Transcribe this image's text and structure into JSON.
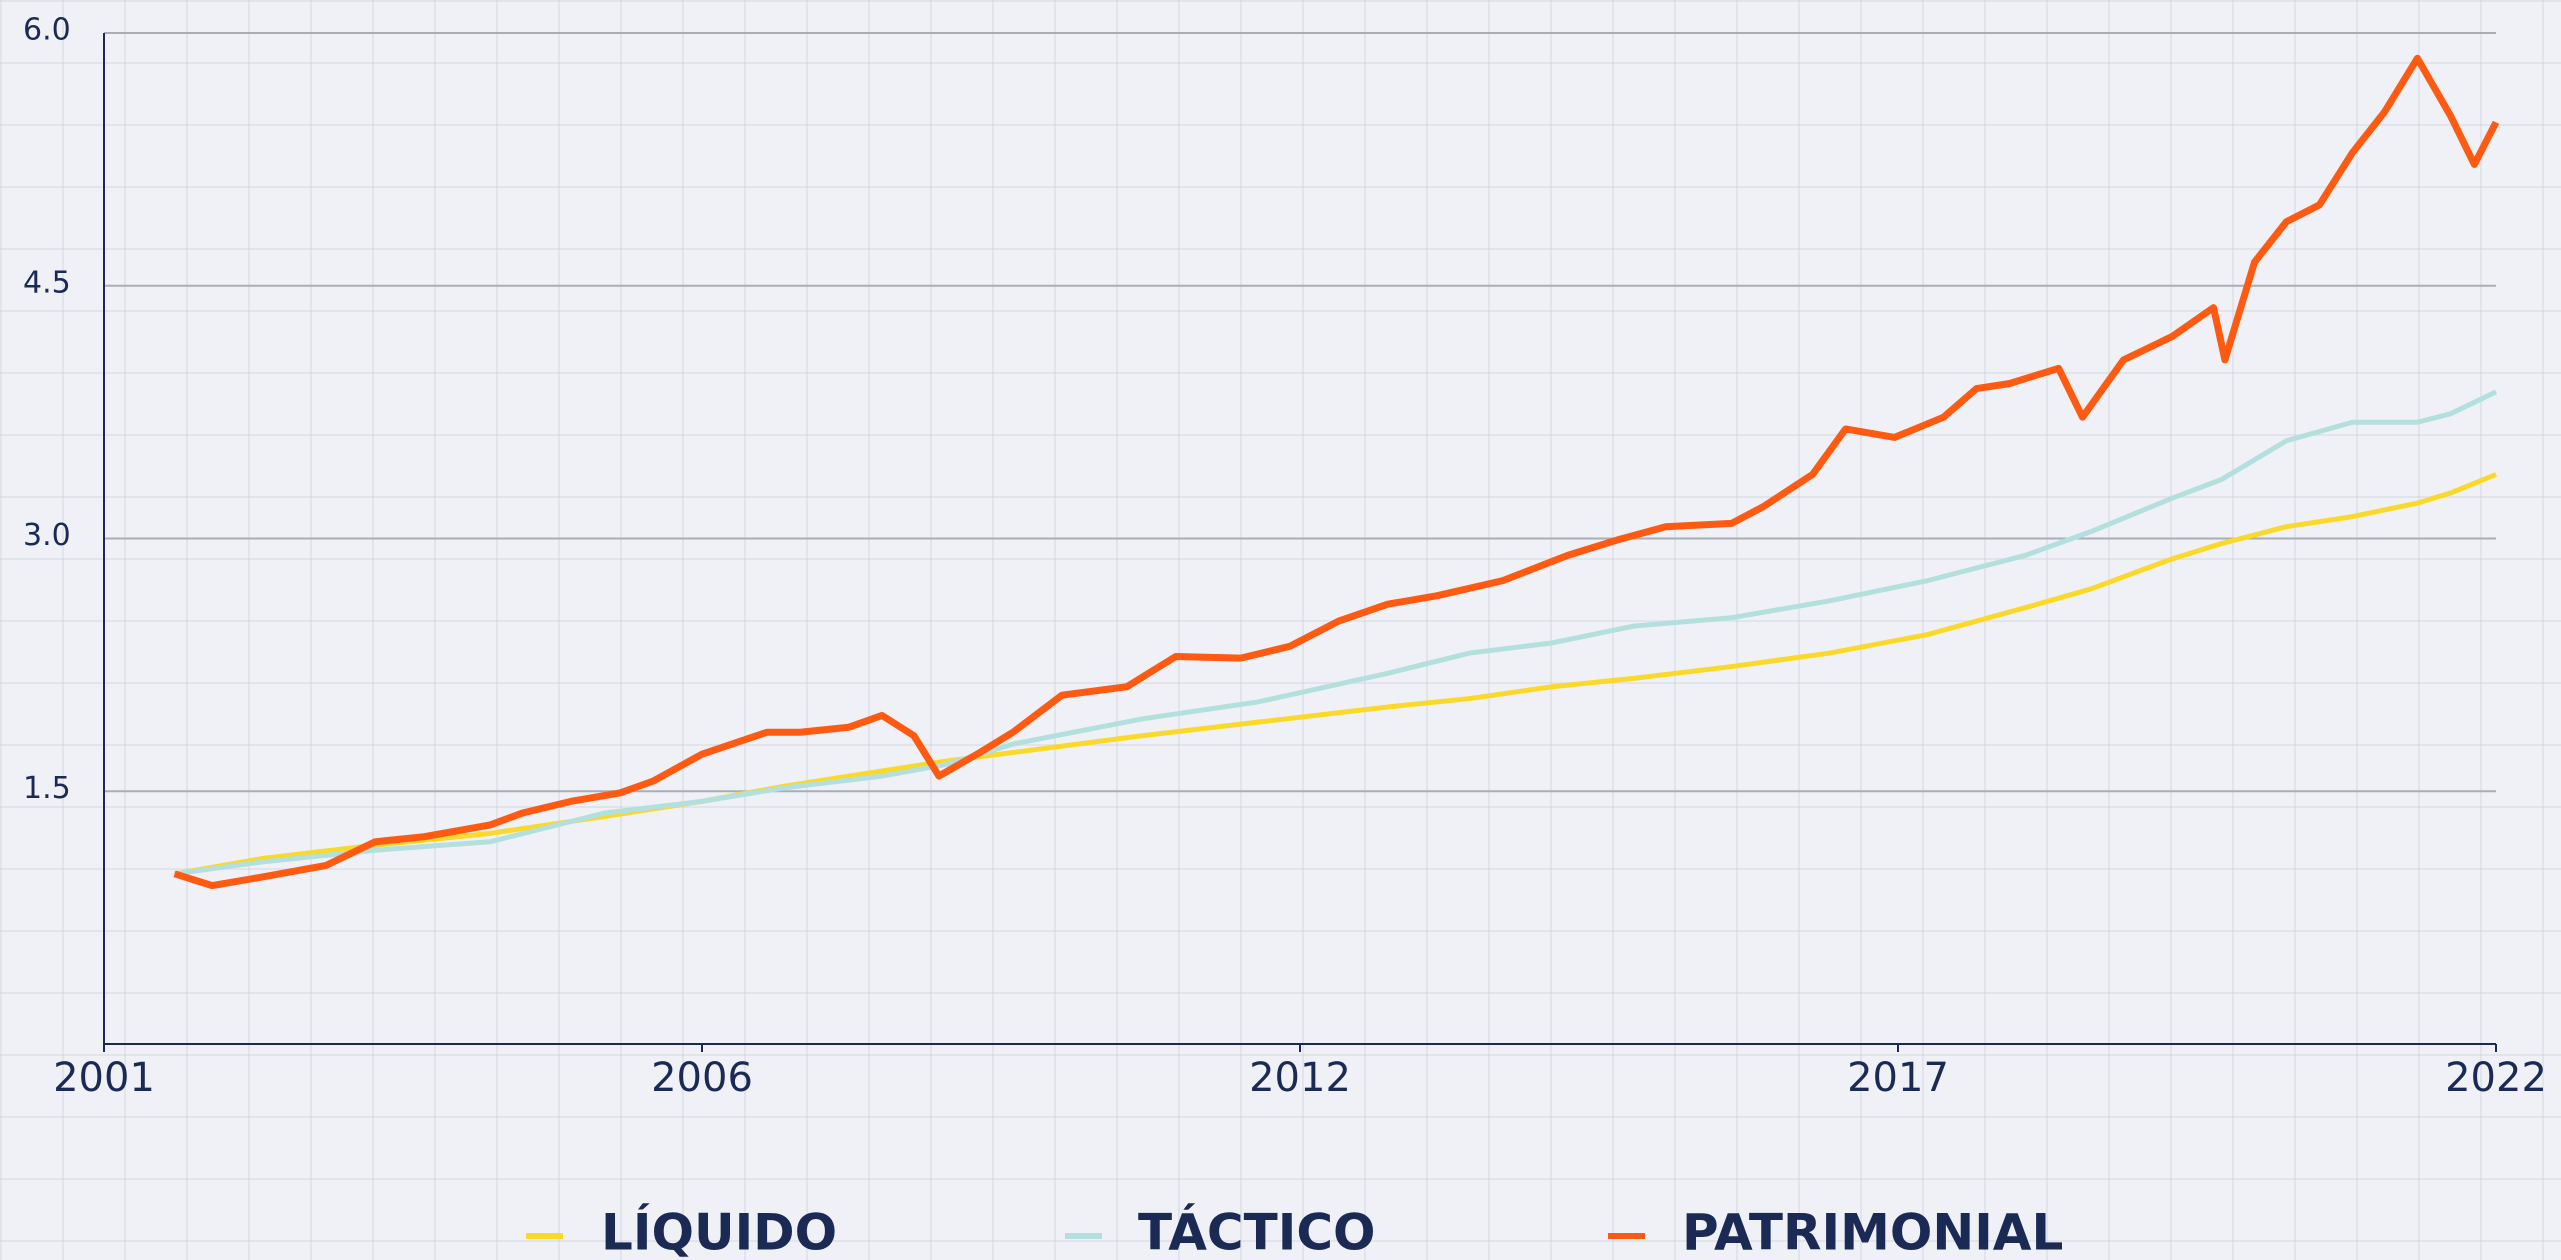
{
  "chart_data": {
    "type": "line",
    "legend": "bottom",
    "grid": true,
    "ylim": [
      0,
      6
    ],
    "yticks": [
      1.5,
      {
        "value": 3,
        "label": "3.0"
      },
      4.5,
      {
        "value": 6,
        "label": "6.0"
      }
    ],
    "xlim": [
      2001,
      2022
    ],
    "xticks": [
      2001,
      {
        "value": 2006.25,
        "label": "2006"
      },
      {
        "value": 2011.5,
        "label": "2012"
      },
      {
        "value": 2016.75,
        "label": "2017"
      },
      2022
    ],
    "x": [
      2001.62,
      2002.38,
      2003.38,
      2004.39,
      2005.39,
      2006.25,
      2006.97,
      2007.83,
      2008.4,
      2008.98,
      2010.12,
      2011.13,
      2012.27,
      2012.99,
      2013.71,
      2014.43,
      2015.29,
      2016.15,
      2017.01,
      2017.87,
      2018.44,
      2019.16,
      2019.59,
      2020.16,
      2020.74,
      2021.31,
      2021.6,
      2022.0
    ],
    "series": [
      {
        "name": "LÍQUIDO",
        "color": "#fbd92a",
        "values": [
          1.01,
          1.1,
          1.18,
          1.25,
          1.35,
          1.44,
          1.53,
          1.62,
          1.68,
          1.73,
          1.83,
          1.91,
          2.0,
          2.05,
          2.12,
          2.17,
          2.24,
          2.32,
          2.43,
          2.59,
          2.7,
          2.88,
          2.97,
          3.07,
          3.13,
          3.21,
          3.27,
          3.38
        ]
      },
      {
        "name": "TÁCTICO",
        "color": "#b3dfde",
        "values": [
          1.01,
          1.08,
          1.15,
          1.2,
          1.37,
          1.44,
          1.52,
          1.59,
          1.66,
          1.78,
          1.93,
          2.03,
          2.2,
          2.32,
          2.38,
          2.48,
          2.53,
          2.63,
          2.75,
          2.9,
          3.04,
          3.24,
          3.35,
          3.58,
          3.69,
          3.69,
          3.74,
          3.87
        ]
      },
      {
        "name": "PATRIMONIAL",
        "color": "#fe5a12",
        "x": [
          2001.62,
          2001.95,
          2002.38,
          2002.95,
          2003.38,
          2003.81,
          2004.39,
          2004.67,
          2005.1,
          2005.53,
          2005.82,
          2006.25,
          2006.82,
          2007.11,
          2007.54,
          2007.83,
          2008.11,
          2008.33,
          2008.69,
          2008.98,
          2009.41,
          2009.98,
          2010.41,
          2010.98,
          2011.41,
          2011.84,
          2012.27,
          2012.7,
          2013.28,
          2013.85,
          2014.28,
          2014.71,
          2015.29,
          2015.57,
          2016.0,
          2016.29,
          2016.72,
          2017.15,
          2017.44,
          2017.73,
          2018.16,
          2018.37,
          2018.73,
          2019.16,
          2019.52,
          2019.62,
          2019.88,
          2020.16,
          2020.45,
          2020.74,
          2021.02,
          2021.31,
          2021.6,
          2021.81,
          2022.0
        ],
        "values": [
          1.01,
          0.94,
          0.99,
          1.06,
          1.2,
          1.23,
          1.3,
          1.37,
          1.44,
          1.49,
          1.56,
          1.72,
          1.85,
          1.85,
          1.88,
          1.95,
          1.83,
          1.59,
          1.73,
          1.85,
          2.07,
          2.12,
          2.3,
          2.29,
          2.36,
          2.51,
          2.61,
          2.66,
          2.75,
          2.9,
          2.99,
          3.07,
          3.09,
          3.19,
          3.38,
          3.65,
          3.6,
          3.72,
          3.89,
          3.92,
          4.01,
          3.72,
          4.06,
          4.2,
          4.37,
          4.06,
          4.64,
          4.88,
          4.98,
          5.29,
          5.53,
          5.85,
          5.51,
          5.22,
          5.47
        ]
      }
    ]
  }
}
